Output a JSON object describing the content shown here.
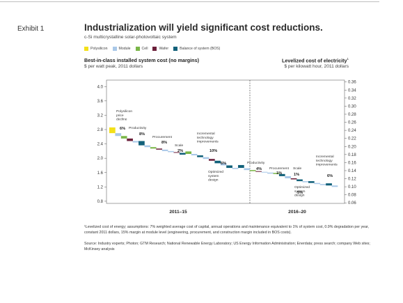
{
  "exhibit": "Exhibit 1",
  "title": "Industrialization will yield significant cost reductions.",
  "subtitle": "c-Si multicrystalline solar-photovoltaic system",
  "legend": [
    {
      "label": "Polysilicon",
      "color": "#f3e01a"
    },
    {
      "label": "Module",
      "color": "#a9c8e8"
    },
    {
      "label": "Cell",
      "color": "#7ab648"
    },
    {
      "label": "Wafer",
      "color": "#6b1f3a"
    },
    {
      "label": "Balance of system (BOS)",
      "color": "#12617a"
    }
  ],
  "left_heading": "Best-in-class installed system cost (no margins)",
  "left_subheading": "$ per watt peak, 2011 dollars",
  "right_heading": "Levelized cost of electricity",
  "right_heading_sup": "1",
  "right_subheading": "$ per kilowatt hour, 2011 dollars",
  "chart_data": {
    "type": "waterfall",
    "left_axis": {
      "ticks": [
        0.8,
        1.2,
        1.6,
        2.0,
        2.4,
        2.8,
        3.2,
        3.6,
        4.0
      ],
      "labels": [
        "0.8",
        "1.2",
        "1.6",
        "2.0",
        "2.4",
        "2.8",
        "3.2",
        "3.6",
        "4.0"
      ],
      "range": [
        0.74,
        4.18
      ]
    },
    "right_axis": {
      "ticks": [
        0.06,
        0.08,
        0.1,
        0.12,
        0.14,
        0.16,
        0.18,
        0.2,
        0.22,
        0.24,
        0.26,
        0.28,
        0.3,
        0.32,
        0.34,
        0.36
      ],
      "labels": [
        "0.06",
        "0.08",
        "0.10",
        "0.12",
        "0.14",
        "0.16",
        "0.18",
        "0.20",
        "0.22",
        "0.24",
        "0.26",
        "0.28",
        "0.30",
        "0.32",
        "0.34",
        "0.36"
      ],
      "range": [
        0.0587,
        0.3647
      ]
    },
    "periods": [
      "2011–15",
      "2016–20"
    ],
    "steps": [
      {
        "component": "Polysilicon",
        "start": 2.86,
        "end": 2.7
      },
      {
        "component": "Module",
        "start": 2.7,
        "end": 2.62
      },
      {
        "component": "Cell",
        "start": 2.62,
        "end": 2.55
      },
      {
        "component": "Wafer",
        "start": 2.55,
        "end": 2.48
      },
      {
        "component": "Module",
        "start": 2.48,
        "end": 2.44
      },
      {
        "component": "Balance of system (BOS)",
        "start": 2.48,
        "end": 2.36
      },
      {
        "component": "Module",
        "start": 2.36,
        "end": 2.31
      },
      {
        "component": "Cell",
        "start": 2.31,
        "end": 2.27
      },
      {
        "component": "Wafer",
        "start": 2.27,
        "end": 2.24
      },
      {
        "component": "Module",
        "start": 2.24,
        "end": 2.2
      },
      {
        "component": "Module",
        "start": 2.2,
        "end": 2.17
      },
      {
        "component": "Wafer",
        "start": 2.17,
        "end": 2.15
      },
      {
        "component": "Balance of system (BOS)",
        "start": 2.15,
        "end": 2.1
      },
      {
        "component": "Cell",
        "start": 2.19,
        "end": 2.12
      },
      {
        "component": "Module",
        "start": 2.12,
        "end": 2.08
      },
      {
        "component": "Balance of system (BOS)",
        "start": 2.08,
        "end": 2.03
      },
      {
        "component": "Module",
        "start": 2.03,
        "end": 1.98
      },
      {
        "component": "Wafer",
        "start": 1.98,
        "end": 1.93
      },
      {
        "component": "Balance of system (BOS)",
        "start": 1.93,
        "end": 1.86
      },
      {
        "component": "Module",
        "start": 1.86,
        "end": 1.8
      },
      {
        "component": "Balance of system (BOS)",
        "start": 1.8,
        "end": 1.73
      },
      {
        "component": "Module",
        "start": 1.73,
        "end": 1.7
      },
      {
        "component": "Balance of system (BOS)",
        "start": 1.81,
        "end": 1.73
      },
      {
        "component": "Module",
        "start": 1.72,
        "end": 1.67
      },
      {
        "component": "Cell",
        "start": 1.67,
        "end": 1.64
      },
      {
        "component": "Wafer",
        "start": 1.64,
        "end": 1.62
      },
      {
        "component": "Module",
        "start": 1.62,
        "end": 1.6
      },
      {
        "component": "Module",
        "start": 1.6,
        "end": 1.57
      },
      {
        "component": "Cell",
        "start": 1.59,
        "end": 1.56
      },
      {
        "component": "Balance of system (BOS)",
        "start": 1.56,
        "end": 1.5
      },
      {
        "component": "Module",
        "start": 1.5,
        "end": 1.44
      },
      {
        "component": "Wafer",
        "start": 1.44,
        "end": 1.41
      },
      {
        "component": "Balance of system (BOS)",
        "start": 1.41,
        "end": 1.36
      },
      {
        "component": "Module",
        "start": 1.36,
        "end": 1.33
      },
      {
        "component": "Balance of system (BOS)",
        "start": 1.36,
        "end": 1.31
      },
      {
        "component": "Module",
        "start": 1.31,
        "end": 1.28
      },
      {
        "component": "Module",
        "start": 1.28,
        "end": 1.25
      },
      {
        "component": "Balance of system (BOS)",
        "start": 1.3,
        "end": 1.24
      },
      {
        "component": "Module",
        "start": 1.24,
        "end": 1.2
      }
    ],
    "annotations": [
      {
        "text": "Polysilicon\nprice\ndecline",
        "pct": "6%"
      },
      {
        "text": "Productivity",
        "pct": "8%"
      },
      {
        "text": "Procurement",
        "pct": "8%"
      },
      {
        "text": "Scale",
        "pct": "2%"
      },
      {
        "text": "Incremental\ntechnology\nimprovements",
        "pct": "10%"
      },
      {
        "text": "Optimized\nsystem\ndesign",
        "pct": "6%"
      },
      {
        "text": "Productivity",
        "pct": "4%"
      },
      {
        "text": "Procurement",
        "pct": "1%"
      },
      {
        "text": "Scale",
        "pct": "1%"
      },
      {
        "text": "Optimized\nsystem\ndesign",
        "pct": "5%"
      },
      {
        "text": "Incremental\ntechnology\nimprovements",
        "pct": "6%"
      }
    ]
  },
  "footnote": "¹Levelized cost of energy; assumptions: 7% weighted average cost of capital, annual operations and maintenance equivalent to 1% of system cost, 0.9% degradation per year, constant 2011 dollars, 15% margin at module level (engineering, procurement, and construction margin included in BOS costs).",
  "source": "Source: Industry experts; Photon; GTM Research; National Renewable Energy Laboratory; US Energy Information Administration; Enerdata; press search; company Web sites; McKinsey analysis"
}
